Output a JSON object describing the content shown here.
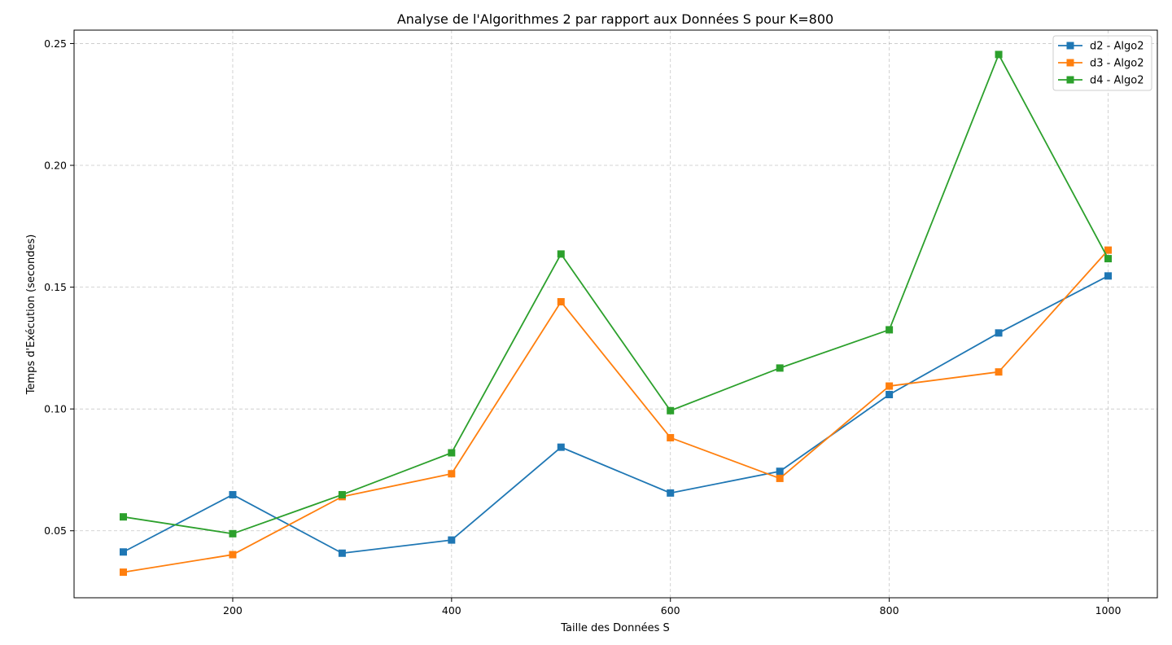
{
  "chart_data": {
    "type": "line",
    "title": "Analyse de l'Algorithmes 2 par rapport aux Données S pour K=800",
    "xlabel": "Taille des Données S",
    "ylabel": "Temps d'Exécution (secondes)",
    "x": [
      100,
      200,
      300,
      400,
      500,
      600,
      700,
      800,
      900,
      1000
    ],
    "xlim": [
      55,
      1045
    ],
    "ylim": [
      0.0225,
      0.2555
    ],
    "xticks": [
      200,
      400,
      600,
      800,
      1000
    ],
    "yticks": [
      0.05,
      0.1,
      0.15,
      0.2,
      0.25
    ],
    "ytick_labels": [
      "0.05",
      "0.10",
      "0.15",
      "0.20",
      "0.25"
    ],
    "grid": true,
    "legend_position": "top-right",
    "marker": "square",
    "series": [
      {
        "name": "d2 - Algo2",
        "color": "#1f77b4",
        "values": [
          0.0413,
          0.0648,
          0.0408,
          0.0462,
          0.0843,
          0.0655,
          0.0744,
          0.1059,
          0.1312,
          0.1546
        ]
      },
      {
        "name": "d3 - Algo2",
        "color": "#ff7f0e",
        "values": [
          0.033,
          0.0402,
          0.064,
          0.0734,
          0.144,
          0.0882,
          0.0715,
          0.1094,
          0.1152,
          0.1652
        ]
      },
      {
        "name": "d4 - Algo2",
        "color": "#2ca02c",
        "values": [
          0.0557,
          0.0488,
          0.0648,
          0.082,
          0.1636,
          0.0993,
          0.1168,
          0.1325,
          0.2455,
          0.1617
        ]
      }
    ]
  }
}
